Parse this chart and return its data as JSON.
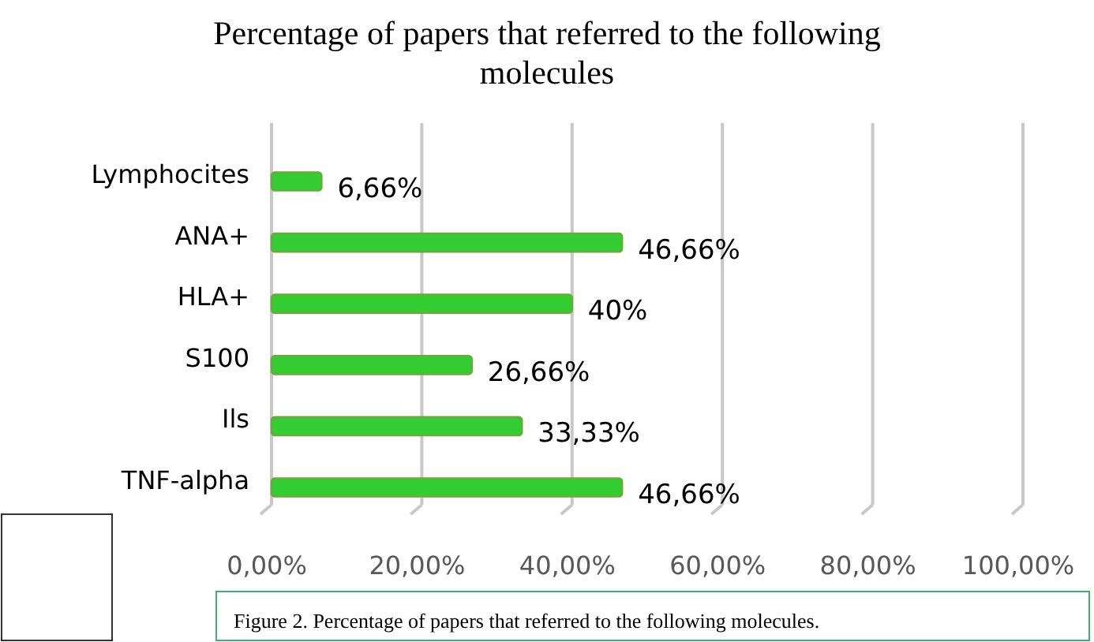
{
  "chart_data": {
    "type": "bar",
    "orientation": "horizontal",
    "title": "Percentage of papers that referred to the following molecules",
    "categories": [
      "Lymphocites",
      "ANA+",
      "HLA+",
      "S100",
      "Ils",
      "TNF-alpha"
    ],
    "values": [
      6.66,
      46.66,
      40,
      26.66,
      33.33,
      46.66
    ],
    "value_labels": [
      "6,66%",
      "46,66%",
      "40%",
      "26,66%",
      "33,33%",
      "46,66%"
    ],
    "color": "#33cc33",
    "xlim": [
      0,
      100
    ],
    "xticks": [
      {
        "value": 0,
        "label": "0,00%"
      },
      {
        "value": 20,
        "label": "20,00%"
      },
      {
        "value": 40,
        "label": "40,00%"
      },
      {
        "value": 60,
        "label": "60,00%"
      },
      {
        "value": 80,
        "label": "80,00%"
      },
      {
        "value": 100,
        "label": "100,00%"
      }
    ],
    "grid": "x",
    "annotations": [
      "Figure 2. Percentage of papers that referred to the following molecules."
    ]
  }
}
